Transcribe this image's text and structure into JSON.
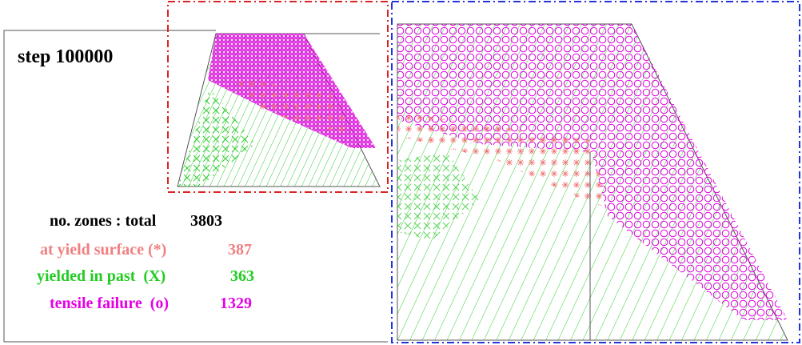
{
  "step_label": "step 100000",
  "legend": {
    "title": "no. zones : total",
    "total": 3803,
    "rows": [
      {
        "label": "at yield surface (*)",
        "count": 387
      },
      {
        "label": "yielded in past  (X)",
        "count": 363
      },
      {
        "label": "tensile failure  (o)",
        "count": 1329
      }
    ]
  }
}
